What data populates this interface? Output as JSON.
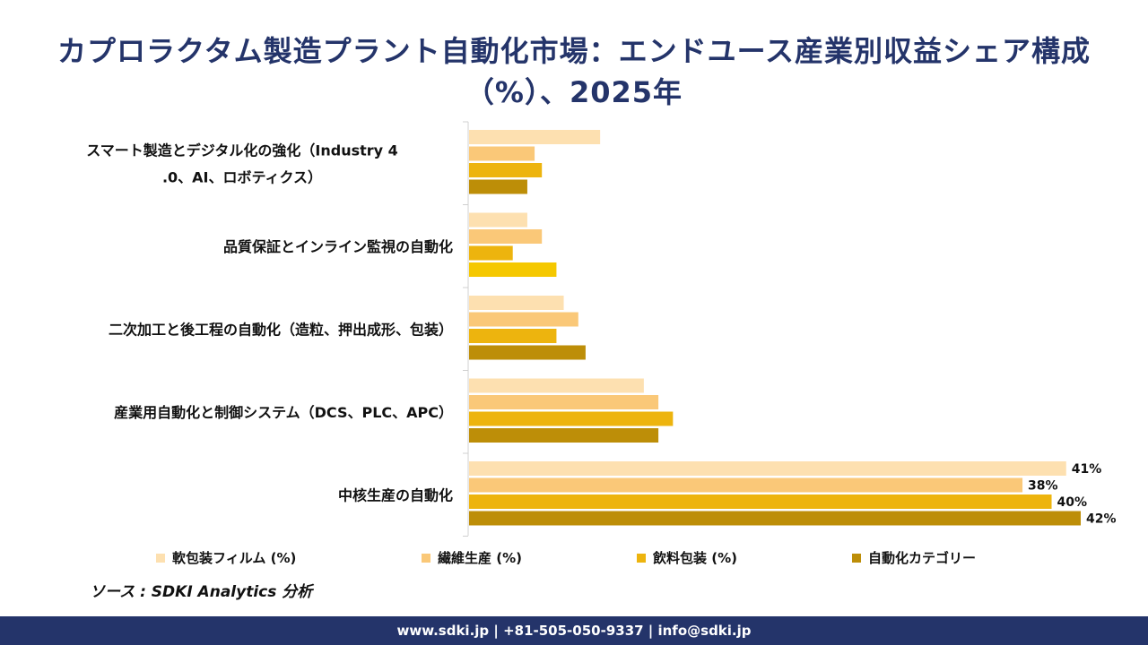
{
  "title": "カプロラクタム製造プラント自動化市場：エンドユース産業別収益シェア構成（%）、2025年",
  "source": "ソース : SDKI Analytics 分析",
  "footer": "www.sdki.jp | +81-505-050-9337 | info@sdki.jp",
  "chart_data": {
    "type": "bar",
    "orientation": "horizontal",
    "categories": [
      "スマート製造とデジタル化の強化（Industry 4.0、AI、ロボティクス）",
      "品質保証とインライン監視の自動化",
      "二次加工と後工程の自動化（造粒、押出成形、包装）",
      "産業用自動化と制御システム（DCS、PLC、APC）",
      "中核生産の自動化"
    ],
    "series": [
      {
        "name": "軟包装フィルム (%)",
        "color": "#fde0b0",
        "values": [
          9,
          4,
          6.5,
          12,
          41
        ],
        "labels": [
          "",
          "",
          "",
          "",
          "41%"
        ]
      },
      {
        "name": "繊維生産 (%)",
        "color": "#fac878",
        "values": [
          4.5,
          5,
          7.5,
          13,
          38
        ],
        "labels": [
          "",
          "",
          "",
          "",
          "38%"
        ]
      },
      {
        "name": "飲料包装 (%)",
        "color": "#edb40e",
        "values": [
          5,
          3,
          6,
          14,
          40
        ],
        "labels": [
          "",
          "",
          "",
          "",
          "40%"
        ]
      },
      {
        "name": "自動化カテゴリー",
        "color": "#bd8e08",
        "values": [
          4,
          6,
          8,
          13,
          42
        ],
        "labels": [
          "",
          "",
          "",
          "",
          "42%"
        ]
      }
    ],
    "highlight_color": "#f5c800",
    "xlim": [
      0,
      42
    ],
    "grid": false,
    "legend_position": "bottom"
  }
}
